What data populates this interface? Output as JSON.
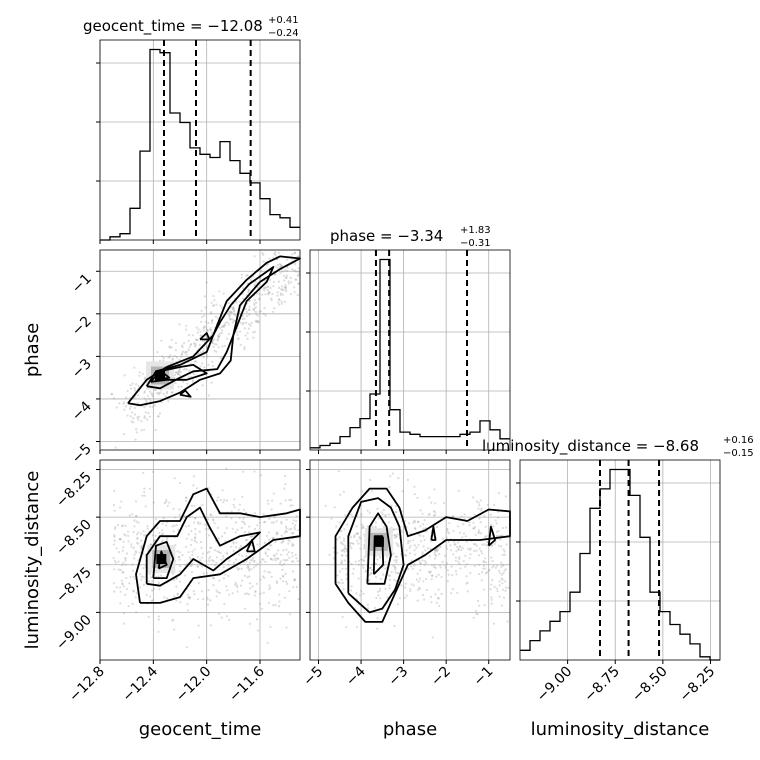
{
  "chart_data": {
    "type": "corner",
    "parameters": [
      "geocent_time",
      "phase",
      "luminosity_distance"
    ],
    "axis_labels": {
      "geocent_time": "geocent_time",
      "phase": "phase",
      "luminosity_distance": "luminosity_distance"
    },
    "ranges": {
      "geocent_time": [
        -12.8,
        -11.3
      ],
      "phase": [
        -5.2,
        -0.5
      ],
      "luminosity_distance": [
        -9.25,
        -8.2
      ]
    },
    "ticks": {
      "geocent_time": [
        -12.8,
        -12.4,
        -12.0,
        -11.6
      ],
      "phase": [
        -5,
        -4,
        -3,
        -2,
        -1
      ],
      "luminosity_distance": [
        -9.0,
        -8.75,
        -8.5,
        -8.25
      ]
    },
    "tick_labels": {
      "geocent_time": [
        "−12.8",
        "−12.4",
        "−12.0",
        "−11.6"
      ],
      "phase": [
        "−5",
        "−4",
        "−3",
        "−2",
        "−1"
      ],
      "luminosity_distance": [
        "−9.00",
        "−8.75",
        "−8.50",
        "−8.25"
      ]
    },
    "titles": [
      {
        "param": "geocent_time",
        "main": "geocent_time = −12.08",
        "plus": "+0.41",
        "minus": "−0.24"
      },
      {
        "param": "phase",
        "main": "phase = −3.34",
        "plus": "+1.83",
        "minus": "−0.31"
      },
      {
        "param": "luminosity_distance",
        "main": "luminosity_distance = −8.68",
        "plus": "+0.16",
        "minus": "−0.15"
      }
    ],
    "quantiles": {
      "geocent_time": [
        -12.32,
        -12.08,
        -11.67
      ],
      "phase": [
        -3.65,
        -3.34,
        -1.51
      ],
      "luminosity_distance": [
        -8.83,
        -8.68,
        -8.52
      ]
    },
    "histograms": {
      "geocent_time": {
        "edges_range": [
          -12.8,
          -11.3
        ],
        "counts": [
          0,
          1,
          2,
          10,
          28,
          60,
          59,
          40,
          37,
          29,
          27,
          26,
          31,
          25,
          21,
          18,
          13,
          8,
          7,
          4
        ]
      },
      "phase": {
        "edges_range": [
          -5.2,
          -0.5
        ],
        "counts": [
          1,
          2,
          3,
          6,
          10,
          14,
          25,
          85,
          18,
          8,
          7,
          6,
          6,
          6,
          6,
          7,
          8,
          13,
          9,
          5
        ]
      },
      "luminosity_distance": {
        "edges_range": [
          -9.25,
          -8.2
        ],
        "counts": [
          3,
          6,
          9,
          12,
          15,
          21,
          33,
          47,
          53,
          59,
          59,
          51,
          38,
          21,
          15,
          11,
          8,
          5,
          1,
          0
        ]
      }
    },
    "contours": {
      "phase_vs_geocent_time": [
        [
          [
            -12.59,
            -4.1
          ],
          [
            -12.45,
            -3.55
          ],
          [
            -12.3,
            -3.25
          ],
          [
            -12.1,
            -3.0
          ],
          [
            -11.95,
            -2.5
          ],
          [
            -11.85,
            -1.7
          ],
          [
            -11.7,
            -1.2
          ],
          [
            -11.55,
            -0.8
          ],
          [
            -11.45,
            -0.65
          ],
          [
            -11.3,
            -0.7
          ],
          [
            -11.45,
            -0.95
          ],
          [
            -11.6,
            -1.25
          ],
          [
            -11.75,
            -1.8
          ],
          [
            -11.8,
            -2.5
          ],
          [
            -11.82,
            -3.1
          ],
          [
            -11.9,
            -3.4
          ],
          [
            -12.05,
            -3.55
          ],
          [
            -12.2,
            -3.85
          ],
          [
            -12.35,
            -4.05
          ],
          [
            -12.5,
            -4.15
          ],
          [
            -12.59,
            -4.1
          ]
        ],
        [
          [
            -12.45,
            -3.7
          ],
          [
            -12.38,
            -3.35
          ],
          [
            -12.2,
            -3.2
          ],
          [
            -12.0,
            -2.9
          ],
          [
            -11.95,
            -2.5
          ],
          [
            -11.9,
            -2.2
          ],
          [
            -11.82,
            -1.8
          ],
          [
            -11.68,
            -1.3
          ],
          [
            -11.5,
            -0.9
          ],
          [
            -11.55,
            -1.25
          ],
          [
            -11.7,
            -1.7
          ],
          [
            -11.85,
            -2.9
          ],
          [
            -11.92,
            -3.3
          ],
          [
            -12.1,
            -3.35
          ],
          [
            -12.2,
            -3.5
          ],
          [
            -12.35,
            -3.75
          ],
          [
            -12.45,
            -3.7
          ]
        ],
        [
          [
            -12.42,
            -3.6
          ],
          [
            -12.35,
            -3.35
          ],
          [
            -12.2,
            -3.25
          ],
          [
            -12.1,
            -3.2
          ],
          [
            -12.0,
            -3.4
          ],
          [
            -12.15,
            -3.55
          ],
          [
            -12.3,
            -3.55
          ],
          [
            -12.42,
            -3.6
          ]
        ],
        [
          [
            -12.37,
            -3.55
          ],
          [
            -12.33,
            -3.38
          ],
          [
            -12.28,
            -3.5
          ],
          [
            -12.37,
            -3.55
          ]
        ],
        [
          [
            -12.2,
            -3.9
          ],
          [
            -12.16,
            -3.8
          ],
          [
            -12.12,
            -3.95
          ],
          [
            -12.2,
            -3.9
          ]
        ],
        [
          [
            -12.05,
            -2.6
          ],
          [
            -12.0,
            -2.45
          ],
          [
            -11.98,
            -2.6
          ],
          [
            -12.05,
            -2.6
          ]
        ]
      ],
      "luminosity_distance_vs_geocent_time": [
        [
          [
            -12.5,
            -8.95
          ],
          [
            -12.53,
            -8.8
          ],
          [
            -12.45,
            -8.6
          ],
          [
            -12.35,
            -8.52
          ],
          [
            -12.2,
            -8.52
          ],
          [
            -12.1,
            -8.38
          ],
          [
            -12.0,
            -8.35
          ],
          [
            -11.9,
            -8.48
          ],
          [
            -11.75,
            -8.48
          ],
          [
            -11.6,
            -8.5
          ],
          [
            -11.4,
            -8.48
          ],
          [
            -11.3,
            -8.46
          ],
          [
            -11.3,
            -8.6
          ],
          [
            -11.5,
            -8.62
          ],
          [
            -11.7,
            -8.72
          ],
          [
            -11.9,
            -8.8
          ],
          [
            -12.1,
            -8.82
          ],
          [
            -12.2,
            -8.92
          ],
          [
            -12.35,
            -8.95
          ],
          [
            -12.5,
            -8.95
          ]
        ],
        [
          [
            -12.45,
            -8.85
          ],
          [
            -12.45,
            -8.7
          ],
          [
            -12.35,
            -8.6
          ],
          [
            -12.22,
            -8.6
          ],
          [
            -12.15,
            -8.5
          ],
          [
            -12.05,
            -8.45
          ],
          [
            -11.98,
            -8.55
          ],
          [
            -11.9,
            -8.65
          ],
          [
            -11.75,
            -8.6
          ],
          [
            -11.6,
            -8.58
          ],
          [
            -11.7,
            -8.65
          ],
          [
            -11.85,
            -8.72
          ],
          [
            -11.95,
            -8.78
          ],
          [
            -12.1,
            -8.72
          ],
          [
            -12.2,
            -8.8
          ],
          [
            -12.35,
            -8.86
          ],
          [
            -12.45,
            -8.85
          ]
        ],
        [
          [
            -12.4,
            -8.82
          ],
          [
            -12.38,
            -8.65
          ],
          [
            -12.3,
            -8.63
          ],
          [
            -12.25,
            -8.72
          ],
          [
            -12.3,
            -8.82
          ],
          [
            -12.4,
            -8.82
          ]
        ],
        [
          [
            -12.36,
            -8.77
          ],
          [
            -12.34,
            -8.68
          ],
          [
            -12.3,
            -8.75
          ],
          [
            -12.36,
            -8.77
          ]
        ],
        [
          [
            -11.7,
            -8.68
          ],
          [
            -11.66,
            -8.62
          ],
          [
            -11.64,
            -8.68
          ],
          [
            -11.7,
            -8.68
          ]
        ]
      ],
      "luminosity_distance_vs_phase": [
        [
          [
            -4.6,
            -8.85
          ],
          [
            -4.6,
            -8.6
          ],
          [
            -4.2,
            -8.45
          ],
          [
            -3.8,
            -8.35
          ],
          [
            -3.4,
            -8.35
          ],
          [
            -3.1,
            -8.45
          ],
          [
            -2.9,
            -8.6
          ],
          [
            -2.5,
            -8.57
          ],
          [
            -2.0,
            -8.5
          ],
          [
            -1.5,
            -8.52
          ],
          [
            -1.0,
            -8.46
          ],
          [
            -0.5,
            -8.47
          ],
          [
            -0.5,
            -8.6
          ],
          [
            -1.2,
            -8.62
          ],
          [
            -2.0,
            -8.62
          ],
          [
            -2.5,
            -8.7
          ],
          [
            -2.9,
            -8.75
          ],
          [
            -3.2,
            -8.9
          ],
          [
            -3.5,
            -9.05
          ],
          [
            -3.9,
            -9.05
          ],
          [
            -4.3,
            -8.95
          ],
          [
            -4.6,
            -8.85
          ]
        ],
        [
          [
            -4.3,
            -8.9
          ],
          [
            -4.3,
            -8.6
          ],
          [
            -4.0,
            -8.42
          ],
          [
            -3.6,
            -8.4
          ],
          [
            -3.3,
            -8.45
          ],
          [
            -3.1,
            -8.55
          ],
          [
            -3.0,
            -8.75
          ],
          [
            -3.2,
            -8.88
          ],
          [
            -3.5,
            -8.98
          ],
          [
            -3.8,
            -9.0
          ],
          [
            -4.3,
            -8.9
          ]
        ],
        [
          [
            -3.85,
            -8.85
          ],
          [
            -3.8,
            -8.55
          ],
          [
            -3.6,
            -8.48
          ],
          [
            -3.4,
            -8.55
          ],
          [
            -3.3,
            -8.7
          ],
          [
            -3.45,
            -8.85
          ],
          [
            -3.85,
            -8.85
          ]
        ],
        [
          [
            -3.7,
            -8.8
          ],
          [
            -3.68,
            -8.6
          ],
          [
            -3.5,
            -8.6
          ],
          [
            -3.48,
            -8.75
          ],
          [
            -3.7,
            -8.8
          ]
        ],
        [
          [
            -2.35,
            -8.62
          ],
          [
            -2.3,
            -8.55
          ],
          [
            -2.25,
            -8.62
          ],
          [
            -2.35,
            -8.62
          ]
        ],
        [
          [
            -1.0,
            -8.65
          ],
          [
            -0.95,
            -8.55
          ],
          [
            -0.85,
            -8.62
          ],
          [
            -1.0,
            -8.65
          ]
        ]
      ]
    },
    "density_peaks": {
      "phase_vs_geocent_time": [
        [
          -12.35,
          -3.45
        ]
      ],
      "luminosity_distance_vs_geocent_time": [
        [
          -12.34,
          -8.72
        ]
      ],
      "luminosity_distance_vs_phase": [
        [
          -3.58,
          -8.63
        ]
      ]
    }
  }
}
